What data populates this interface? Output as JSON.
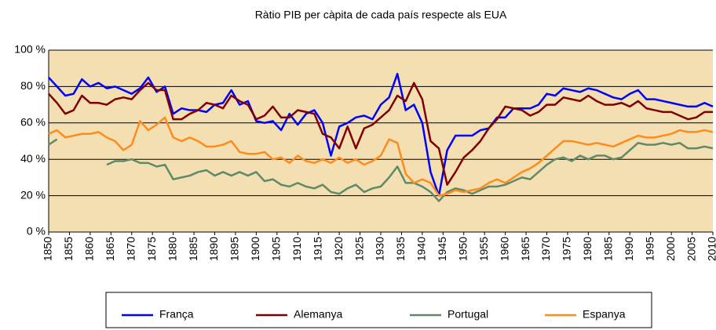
{
  "chart_data": {
    "type": "line",
    "title": "Ràtio PIB per càpita de cada país respecte als EUA",
    "x": [
      1850,
      1852,
      1854,
      1856,
      1858,
      1860,
      1862,
      1864,
      1866,
      1868,
      1870,
      1872,
      1874,
      1876,
      1878,
      1880,
      1882,
      1884,
      1886,
      1888,
      1890,
      1892,
      1894,
      1896,
      1898,
      1900,
      1902,
      1904,
      1906,
      1908,
      1910,
      1912,
      1914,
      1916,
      1918,
      1920,
      1922,
      1924,
      1926,
      1928,
      1930,
      1932,
      1934,
      1936,
      1938,
      1940,
      1942,
      1944,
      1946,
      1948,
      1950,
      1952,
      1954,
      1956,
      1958,
      1960,
      1962,
      1964,
      1966,
      1968,
      1970,
      1972,
      1974,
      1976,
      1978,
      1980,
      1982,
      1984,
      1986,
      1988,
      1990,
      1992,
      1994,
      1996,
      1998,
      2000,
      2002,
      2004,
      2006,
      2008,
      2010
    ],
    "series": [
      {
        "name": "França",
        "color": "#0000ff",
        "values": [
          85,
          80,
          75,
          76,
          84,
          80,
          82,
          79,
          80,
          78,
          76,
          79,
          85,
          77,
          80,
          65,
          68,
          67,
          67,
          66,
          70,
          71,
          78,
          70,
          72,
          61,
          60,
          61,
          56,
          65,
          59,
          65,
          67,
          60,
          42,
          58,
          60,
          63,
          64,
          62,
          70,
          74,
          87,
          67,
          70,
          60,
          33,
          20,
          45,
          53,
          53,
          53,
          56,
          57,
          63,
          63,
          68,
          68,
          68,
          70,
          76,
          75,
          79,
          78,
          77,
          79,
          78,
          76,
          74,
          73,
          76,
          78,
          73,
          73,
          72,
          71,
          70,
          69,
          69,
          71,
          69
        ]
      },
      {
        "name": "Alemanya",
        "color": "#7f0000",
        "values": [
          76,
          71,
          65,
          67,
          75,
          71,
          71,
          70,
          73,
          74,
          73,
          78,
          82,
          78,
          78,
          62,
          62,
          65,
          67,
          71,
          70,
          68,
          75,
          72,
          70,
          62,
          64,
          69,
          63,
          63,
          67,
          66,
          65,
          54,
          52,
          46,
          58,
          46,
          57,
          59,
          63,
          67,
          75,
          72,
          82,
          73,
          50,
          46,
          26,
          33,
          41,
          45,
          50,
          57,
          62,
          69,
          68,
          67,
          64,
          66,
          70,
          70,
          74,
          73,
          72,
          75,
          72,
          70,
          70,
          71,
          69,
          72,
          68,
          67,
          66,
          66,
          64,
          62,
          63,
          66,
          66
        ]
      },
      {
        "name": "Portugal",
        "color": "#5f8a6a",
        "values": [
          48,
          51,
          null,
          null,
          null,
          null,
          null,
          37,
          39,
          39,
          40,
          38,
          38,
          36,
          37,
          29,
          30,
          31,
          33,
          34,
          31,
          33,
          31,
          33,
          31,
          33,
          28,
          29,
          26,
          25,
          27,
          25,
          24,
          26,
          22,
          21,
          24,
          26,
          22,
          24,
          25,
          30,
          36,
          27,
          27,
          25,
          22,
          17,
          22,
          24,
          23,
          21,
          23,
          25,
          25,
          26,
          28,
          30,
          29,
          33,
          37,
          40,
          41,
          39,
          42,
          40,
          42,
          42,
          40,
          41,
          45,
          49,
          48,
          48,
          49,
          48,
          49,
          46,
          46,
          47,
          46
        ]
      },
      {
        "name": "Espanya",
        "color": "#ff8c1a",
        "values": [
          54,
          56,
          52,
          53,
          54,
          54,
          55,
          52,
          50,
          45,
          48,
          61,
          56,
          59,
          63,
          52,
          50,
          52,
          50,
          47,
          47,
          48,
          50,
          44,
          43,
          43,
          44,
          40,
          41,
          38,
          42,
          39,
          38,
          40,
          38,
          41,
          38,
          40,
          37,
          39,
          42,
          51,
          49,
          32,
          27,
          29,
          27,
          20,
          21,
          23,
          22,
          23,
          24,
          27,
          29,
          27,
          30,
          33,
          35,
          38,
          42,
          46,
          50,
          50,
          49,
          48,
          49,
          48,
          47,
          49,
          51,
          53,
          52,
          52,
          53,
          54,
          56,
          55,
          55,
          56,
          55
        ]
      }
    ],
    "xlim": [
      1850,
      2010
    ],
    "xticks": [
      1850,
      1855,
      1860,
      1865,
      1870,
      1875,
      1880,
      1885,
      1890,
      1895,
      1900,
      1905,
      1910,
      1915,
      1920,
      1925,
      1930,
      1935,
      1940,
      1945,
      1950,
      1955,
      1960,
      1965,
      1970,
      1975,
      1980,
      1985,
      1990,
      1995,
      2000,
      2005,
      2010
    ],
    "ylim": [
      0,
      100
    ],
    "yticks": [
      {
        "value": 0,
        "label": "0 %"
      },
      {
        "value": 20,
        "label": "20 %"
      },
      {
        "value": 40,
        "label": "40 %"
      },
      {
        "value": 60,
        "label": "60 %"
      },
      {
        "value": 80,
        "label": "80 %"
      },
      {
        "value": 100,
        "label": "100 %"
      }
    ],
    "grid": true
  }
}
